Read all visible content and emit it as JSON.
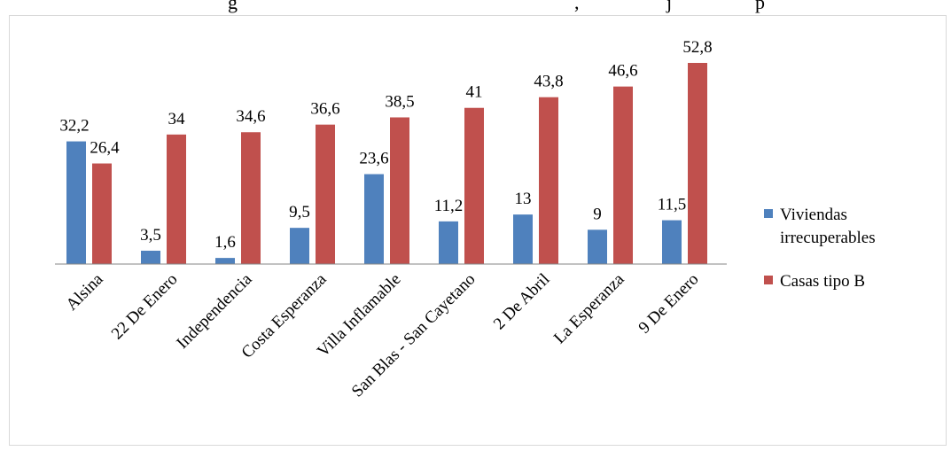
{
  "page": {
    "title_fragments": [
      "g",
      ", ",
      "j",
      "p"
    ]
  },
  "colors": {
    "series1": "#4f81bd",
    "series2": "#c0504d",
    "axis": "#868686",
    "frame": "#d9d9d9"
  },
  "chart_data": {
    "type": "bar",
    "title": "",
    "xlabel": "",
    "ylabel": "",
    "ylim": [
      0,
      52.8
    ],
    "grid": false,
    "legend_position": "right",
    "categories": [
      "Alsina",
      "22 De Enero",
      "Independencia",
      "Costa Esperanza",
      "Villa Inflamable",
      "San Blas - San Cayetano",
      "2 De Abril",
      "La Esperanza",
      "9 De Enero"
    ],
    "series": [
      {
        "name": "Viviendas irrecuperables",
        "legend_lines": [
          "Viviendas",
          "irrecuperables"
        ],
        "values": [
          32.2,
          3.5,
          1.6,
          9.5,
          23.6,
          11.2,
          13,
          9,
          11.5
        ],
        "labels": [
          "32,2",
          "3,5",
          "1,6",
          "9,5",
          "23,6",
          "11,2",
          "13",
          "9",
          "11,5"
        ]
      },
      {
        "name": "Casas tipo B",
        "legend_lines": [
          "Casas tipo B"
        ],
        "values": [
          26.4,
          34,
          34.6,
          36.6,
          38.5,
          41,
          43.8,
          46.6,
          52.8
        ],
        "labels": [
          "26,4",
          "34",
          "34,6",
          "36,6",
          "38,5",
          "41",
          "43,8",
          "46,6",
          "52,8"
        ]
      }
    ]
  }
}
